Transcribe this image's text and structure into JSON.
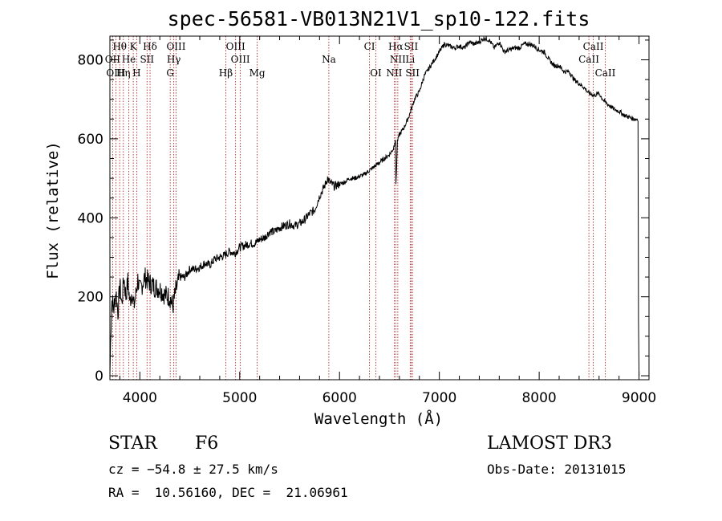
{
  "chart_data": {
    "type": "line",
    "title": "spec-56581-VB013N21V1_sp10-122.fits",
    "xlabel": "Wavelength (Å)",
    "ylabel": "Flux (relative)",
    "xlim": [
      3700,
      9100
    ],
    "ylim": [
      -10,
      860
    ],
    "xticks": [
      4000,
      5000,
      6000,
      7000,
      8000,
      9000
    ],
    "yticks": [
      0,
      200,
      400,
      600,
      800
    ],
    "series": [
      {
        "name": "flux",
        "x": [
          3700,
          3710,
          3720,
          3740,
          3760,
          3780,
          3800,
          3820,
          3840,
          3860,
          3880,
          3900,
          3920,
          3940,
          3960,
          3980,
          4000,
          4050,
          4100,
          4150,
          4200,
          4250,
          4300,
          4330,
          4360,
          4400,
          4450,
          4500,
          4550,
          4600,
          4650,
          4700,
          4750,
          4800,
          4850,
          4900,
          4950,
          5000,
          5050,
          5100,
          5150,
          5200,
          5250,
          5300,
          5350,
          5400,
          5450,
          5500,
          5550,
          5600,
          5650,
          5700,
          5750,
          5800,
          5850,
          5880,
          5900,
          5950,
          6000,
          6050,
          6100,
          6150,
          6200,
          6250,
          6300,
          6350,
          6400,
          6450,
          6500,
          6540,
          6560,
          6565,
          6580,
          6600,
          6650,
          6700,
          6750,
          6800,
          6850,
          6900,
          6950,
          7000,
          7050,
          7100,
          7150,
          7200,
          7250,
          7300,
          7350,
          7400,
          7450,
          7500,
          7550,
          7600,
          7650,
          7700,
          7750,
          7800,
          7850,
          7900,
          7950,
          8000,
          8050,
          8100,
          8150,
          8200,
          8250,
          8300,
          8350,
          8400,
          8450,
          8500,
          8550,
          8600,
          8650,
          8700,
          8750,
          8800,
          8850,
          8900,
          8950,
          8990,
          8995,
          9000
        ],
        "y": [
          0,
          120,
          190,
          170,
          215,
          160,
          230,
          180,
          250,
          200,
          240,
          185,
          215,
          175,
          205,
          245,
          215,
          250,
          235,
          225,
          220,
          205,
          200,
          175,
          215,
          250,
          250,
          270,
          270,
          275,
          285,
          280,
          295,
          300,
          305,
          315,
          310,
          325,
          330,
          335,
          335,
          345,
          350,
          365,
          365,
          375,
          380,
          385,
          380,
          385,
          395,
          410,
          420,
          455,
          480,
          500,
          490,
          480,
          485,
          490,
          500,
          500,
          505,
          510,
          520,
          530,
          540,
          550,
          560,
          575,
          600,
          480,
          595,
          610,
          630,
          660,
          700,
          720,
          760,
          780,
          800,
          820,
          840,
          835,
          830,
          835,
          830,
          845,
          840,
          845,
          855,
          850,
          830,
          845,
          820,
          825,
          830,
          830,
          840,
          840,
          835,
          825,
          820,
          800,
          785,
          785,
          770,
          770,
          750,
          740,
          730,
          715,
          710,
          715,
          695,
          685,
          675,
          670,
          660,
          655,
          650,
          650,
          140,
          0
        ]
      }
    ],
    "line_markers": [
      {
        "name": "Hθ",
        "x": 3798,
        "row": 1
      },
      {
        "name": "K",
        "x": 3934,
        "row": 1
      },
      {
        "name": "Hδ",
        "x": 4102,
        "row": 1
      },
      {
        "name": "OIII",
        "x": 4363,
        "row": 1
      },
      {
        "name": "OIII",
        "x": 4959,
        "row": 1
      },
      {
        "name": "CI",
        "x": 6300,
        "row": 1
      },
      {
        "name": "Hα",
        "x": 6563,
        "row": 1
      },
      {
        "name": "SII",
        "x": 6717,
        "row": 1
      },
      {
        "name": "CaII",
        "x": 8542,
        "row": 1
      },
      {
        "name": "OII",
        "x": 3727,
        "row": 2
      },
      {
        "name": "He",
        "x": 3889,
        "row": 2
      },
      {
        "name": "SII",
        "x": 4072,
        "row": 2
      },
      {
        "name": "Hγ",
        "x": 4340,
        "row": 2
      },
      {
        "name": "OIII",
        "x": 5007,
        "row": 2
      },
      {
        "name": "Na",
        "x": 5893,
        "row": 2
      },
      {
        "name": "NII",
        "x": 6584,
        "row": 2
      },
      {
        "name": "Li",
        "x": 6708,
        "row": 2
      },
      {
        "name": "CaII",
        "x": 8498,
        "row": 2
      },
      {
        "name": "OIII",
        "x": 3760,
        "row": 3
      },
      {
        "name": "Hη",
        "x": 3835,
        "row": 3
      },
      {
        "name": "H",
        "x": 3968,
        "row": 3
      },
      {
        "name": "G",
        "x": 4304,
        "row": 3
      },
      {
        "name": "Hβ",
        "x": 4861,
        "row": 3
      },
      {
        "name": "Mg",
        "x": 5175,
        "row": 3
      },
      {
        "name": "OI",
        "x": 6364,
        "row": 3
      },
      {
        "name": "NII",
        "x": 6548,
        "row": 3
      },
      {
        "name": "SII",
        "x": 6731,
        "row": 3
      },
      {
        "name": "CaII",
        "x": 8662,
        "row": 3
      }
    ],
    "colors": {
      "spectrum": "#000000",
      "markers": "#b01010",
      "axes": "#000000"
    }
  },
  "footer": {
    "object_class": "STAR",
    "subclass": "F6",
    "survey": "LAMOST DR3",
    "cz": "cz = −54.8 ± 27.5 km/s",
    "obs_date": "Obs-Date: 20131015",
    "coords": "RA =  10.56160, DEC =  21.06961"
  }
}
